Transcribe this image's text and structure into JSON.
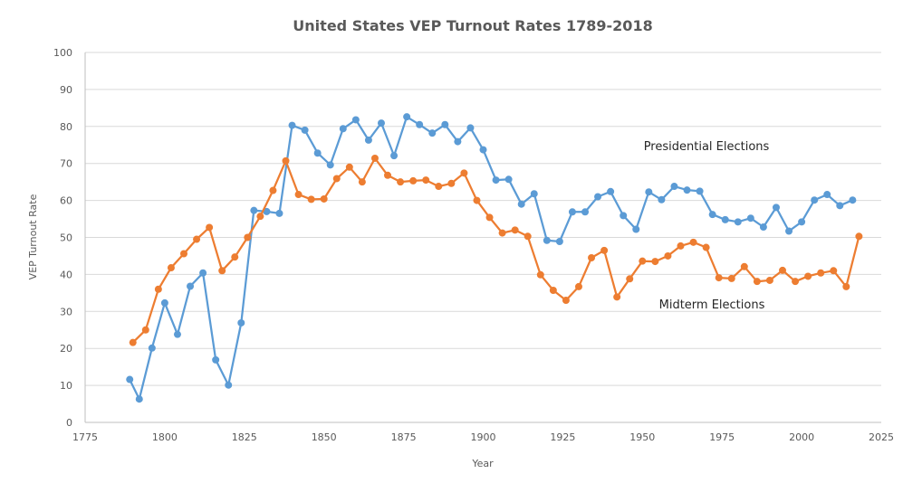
{
  "chart_data": {
    "type": "line",
    "title": "United States VEP Turnout Rates 1789-2018",
    "xlabel": "Year",
    "ylabel": "VEP Turnout Rate",
    "xlim": [
      1775,
      2025
    ],
    "ylim": [
      0,
      100
    ],
    "x_ticks": [
      "1775",
      "1800",
      "1825",
      "1850",
      "1875",
      "1900",
      "1925",
      "1950",
      "1975",
      "2000",
      "2025"
    ],
    "y_ticks": [
      "0",
      "10",
      "20",
      "30",
      "40",
      "50",
      "60",
      "70",
      "80",
      "90",
      "100"
    ],
    "grid": "horizontal",
    "legend": "none",
    "annotations": [
      {
        "text": "Presidential Elections",
        "series": "Presidential Elections"
      },
      {
        "text": "Midterm Elections",
        "series": "Midterm Elections"
      }
    ],
    "series": [
      {
        "name": "Presidential Elections",
        "color": "#5B9BD5",
        "x": [
          1789,
          1792,
          1796,
          1800,
          1804,
          1808,
          1812,
          1816,
          1820,
          1824,
          1828,
          1832,
          1836,
          1840,
          1844,
          1848,
          1852,
          1856,
          1860,
          1864,
          1868,
          1872,
          1876,
          1880,
          1884,
          1888,
          1892,
          1896,
          1900,
          1904,
          1908,
          1912,
          1916,
          1920,
          1924,
          1928,
          1932,
          1936,
          1940,
          1944,
          1948,
          1952,
          1956,
          1960,
          1964,
          1968,
          1972,
          1976,
          1980,
          1984,
          1988,
          1992,
          1996,
          2000,
          2004,
          2008,
          2012,
          2016
        ],
        "values": [
          11.6,
          6.3,
          20.1,
          32.3,
          23.8,
          36.8,
          40.4,
          16.9,
          10.1,
          26.9,
          57.3,
          57.0,
          56.5,
          80.3,
          79.0,
          72.8,
          69.6,
          79.4,
          81.8,
          76.3,
          80.9,
          72.1,
          82.6,
          80.5,
          78.2,
          80.5,
          75.9,
          79.6,
          73.7,
          65.5,
          65.7,
          59.0,
          61.8,
          49.2,
          48.9,
          56.9,
          56.9,
          61.0,
          62.4,
          55.9,
          52.2,
          62.3,
          60.2,
          63.8,
          62.8,
          62.5,
          56.2,
          54.8,
          54.2,
          55.2,
          52.8,
          58.1,
          51.7,
          54.2,
          60.1,
          61.6,
          58.6,
          60.1
        ]
      },
      {
        "name": "Midterm Elections",
        "color": "#ED7D31",
        "x": [
          1790,
          1794,
          1798,
          1802,
          1806,
          1810,
          1814,
          1818,
          1822,
          1826,
          1830,
          1834,
          1838,
          1842,
          1846,
          1850,
          1854,
          1858,
          1862,
          1866,
          1870,
          1874,
          1878,
          1882,
          1886,
          1890,
          1894,
          1898,
          1902,
          1906,
          1910,
          1914,
          1918,
          1922,
          1926,
          1930,
          1934,
          1938,
          1942,
          1946,
          1950,
          1954,
          1958,
          1962,
          1966,
          1970,
          1974,
          1978,
          1982,
          1986,
          1990,
          1994,
          1998,
          2002,
          2006,
          2010,
          2014,
          2018
        ],
        "values": [
          21.6,
          25.0,
          36.0,
          41.8,
          45.6,
          49.5,
          52.7,
          41.0,
          44.7,
          50.0,
          55.7,
          62.7,
          70.7,
          61.6,
          60.3,
          60.4,
          65.9,
          69.0,
          65.0,
          71.4,
          66.8,
          65.0,
          65.3,
          65.5,
          63.8,
          64.6,
          67.4,
          60.0,
          55.4,
          51.2,
          52.0,
          50.3,
          39.9,
          35.7,
          33.0,
          36.7,
          44.5,
          46.5,
          33.9,
          38.8,
          43.6,
          43.5,
          45.0,
          47.7,
          48.7,
          47.3,
          39.1,
          38.9,
          42.1,
          38.1,
          38.4,
          41.1,
          38.1,
          39.5,
          40.4,
          41.0,
          36.7,
          50.3
        ]
      }
    ]
  }
}
